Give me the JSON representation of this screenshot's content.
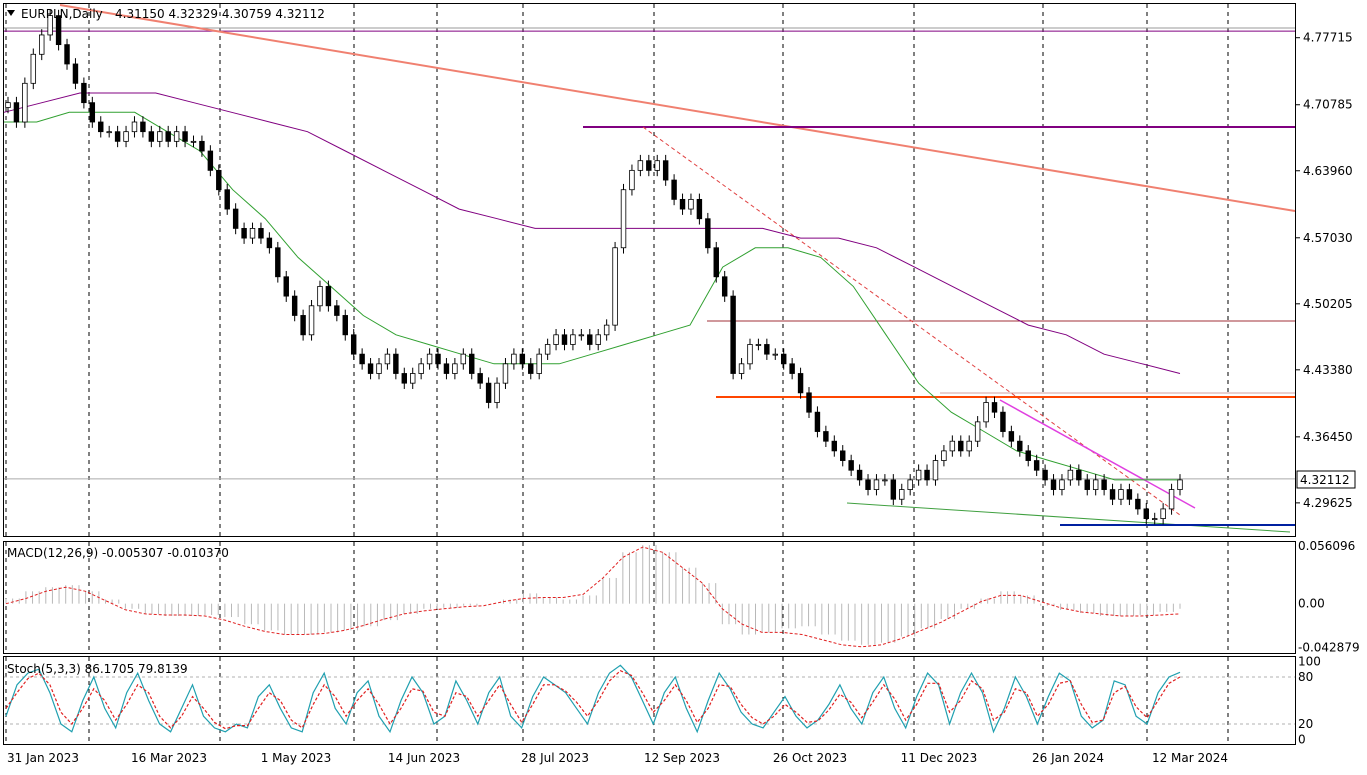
{
  "chart_data": {
    "type": "candlestick",
    "symbol_header": "EURPLN,Daily",
    "ohlc_header": "4.31150 4.32329 4.30759 4.32112",
    "current_price": "4.32112",
    "price_ticks": [
      "4.77715",
      "4.70785",
      "4.63960",
      "4.57030",
      "4.50205",
      "4.43380",
      "4.36450",
      "4.29625"
    ],
    "date_ticks": [
      "31 Jan 2023",
      "16 Mar 2023",
      "1 May 2023",
      "14 Jun 2023",
      "28 Jul 2023",
      "12 Sep 2023",
      "26 Oct 2023",
      "11 Dec 2023",
      "26 Jan 2024",
      "12 Mar 2024"
    ],
    "price_range": [
      4.262,
      4.812
    ],
    "grid": true,
    "closes": [
      4.71,
      4.69,
      4.73,
      4.76,
      4.78,
      4.8,
      4.77,
      4.75,
      4.73,
      4.71,
      4.69,
      4.68,
      4.68,
      4.67,
      4.68,
      4.69,
      4.68,
      4.67,
      4.68,
      4.67,
      4.68,
      4.67,
      4.67,
      4.66,
      4.64,
      4.62,
      4.6,
      4.58,
      4.57,
      4.58,
      4.57,
      4.56,
      4.53,
      4.51,
      4.49,
      4.47,
      4.5,
      4.52,
      4.5,
      4.49,
      4.47,
      4.45,
      4.44,
      4.43,
      4.44,
      4.45,
      4.43,
      4.42,
      4.43,
      4.44,
      4.45,
      4.44,
      4.43,
      4.44,
      4.45,
      4.43,
      4.42,
      4.4,
      4.42,
      4.44,
      4.45,
      4.44,
      4.43,
      4.45,
      4.46,
      4.47,
      4.46,
      4.47,
      4.47,
      4.46,
      4.47,
      4.48,
      4.56,
      4.62,
      4.64,
      4.65,
      4.64,
      4.65,
      4.63,
      4.61,
      4.6,
      4.61,
      4.59,
      4.56,
      4.53,
      4.51,
      4.43,
      4.44,
      4.46,
      4.46,
      4.45,
      4.45,
      4.44,
      4.43,
      4.41,
      4.39,
      4.37,
      4.36,
      4.35,
      4.34,
      4.33,
      4.32,
      4.31,
      4.32,
      4.32,
      4.3,
      4.31,
      4.32,
      4.33,
      4.32,
      4.34,
      4.35,
      4.36,
      4.35,
      4.36,
      4.38,
      4.4,
      4.39,
      4.37,
      4.36,
      4.35,
      4.34,
      4.33,
      4.32,
      4.31,
      4.32,
      4.33,
      4.32,
      4.31,
      4.32,
      4.31,
      4.3,
      4.31,
      4.3,
      4.29,
      4.28,
      4.28,
      4.29,
      4.31,
      4.32
    ],
    "ma_green": [
      4.69,
      4.69,
      4.7,
      4.7,
      4.7,
      4.68,
      4.66,
      4.62,
      4.59,
      4.55,
      4.52,
      4.49,
      4.47,
      4.46,
      4.45,
      4.44,
      4.44,
      4.44,
      4.45,
      4.46,
      4.47,
      4.48,
      4.54,
      4.56,
      4.56,
      4.55,
      4.52,
      4.47,
      4.42,
      4.39,
      4.37,
      4.35,
      4.34,
      4.33,
      4.32,
      4.32,
      4.32
    ],
    "ma_purple": [
      4.7,
      4.71,
      4.72,
      4.72,
      4.72,
      4.71,
      4.7,
      4.69,
      4.68,
      4.66,
      4.64,
      4.62,
      4.6,
      4.59,
      4.58,
      4.58,
      4.58,
      4.58,
      4.58,
      4.58,
      4.58,
      4.57,
      4.57,
      4.56,
      4.54,
      4.52,
      4.5,
      4.48,
      4.47,
      4.45,
      4.44,
      4.43
    ],
    "macd_panel": {
      "header": "MACD(12,26,9) -0.005307 -0.010370",
      "ticks": [
        "0.056096",
        "0.00",
        "-0.042879"
      ],
      "range": [
        -0.048,
        0.06
      ],
      "histogram": [
        0.005,
        0.012,
        0.016,
        0.018,
        0.012,
        0.004,
        -0.005,
        -0.01,
        -0.012,
        -0.012,
        -0.011,
        -0.013,
        -0.02,
        -0.026,
        -0.03,
        -0.03,
        -0.028,
        -0.026,
        -0.022,
        -0.016,
        -0.01,
        -0.005,
        -0.004,
        -0.002,
        0.0,
        0.004,
        0.01,
        0.006,
        0.004,
        0.008,
        0.025,
        0.05,
        0.057,
        0.05,
        0.035,
        0.02,
        -0.02,
        -0.03,
        -0.028,
        -0.024,
        -0.022,
        -0.03,
        -0.036,
        -0.04,
        -0.038,
        -0.032,
        -0.024,
        -0.015,
        -0.005,
        0.005,
        0.012,
        0.008,
        -0.002,
        -0.006,
        -0.009,
        -0.012,
        -0.012,
        -0.011,
        -0.008,
        -0.005
      ],
      "signal": [
        0.0,
        0.005,
        0.012,
        0.016,
        0.012,
        0.003,
        -0.006,
        -0.01,
        -0.011,
        -0.011,
        -0.012,
        -0.016,
        -0.022,
        -0.027,
        -0.03,
        -0.03,
        -0.029,
        -0.026,
        -0.021,
        -0.015,
        -0.01,
        -0.007,
        -0.005,
        -0.003,
        -0.002,
        0.002,
        0.005,
        0.006,
        0.006,
        0.009,
        0.025,
        0.045,
        0.055,
        0.05,
        0.035,
        0.02,
        -0.005,
        -0.02,
        -0.028,
        -0.028,
        -0.03,
        -0.035,
        -0.04,
        -0.042,
        -0.04,
        -0.034,
        -0.026,
        -0.018,
        -0.008,
        0.002,
        0.008,
        0.008,
        0.002,
        -0.004,
        -0.008,
        -0.01,
        -0.012,
        -0.012,
        -0.011,
        -0.01
      ]
    },
    "stoch_panel": {
      "header": "Stoch(5,3,3) 86.1705 79.8139",
      "ticks": [
        "100",
        "80",
        "20",
        "0"
      ],
      "range": [
        0,
        100
      ],
      "main": [
        30,
        70,
        85,
        90,
        60,
        20,
        10,
        50,
        80,
        40,
        15,
        60,
        85,
        50,
        20,
        10,
        40,
        70,
        30,
        15,
        10,
        20,
        15,
        55,
        70,
        40,
        15,
        10,
        60,
        85,
        40,
        20,
        60,
        75,
        30,
        10,
        50,
        80,
        60,
        20,
        30,
        75,
        50,
        20,
        60,
        80,
        30,
        15,
        55,
        80,
        70,
        60,
        40,
        20,
        60,
        85,
        95,
        80,
        50,
        20,
        60,
        80,
        40,
        10,
        50,
        85,
        65,
        35,
        20,
        15,
        35,
        55,
        30,
        15,
        25,
        45,
        70,
        40,
        20,
        60,
        80,
        40,
        15,
        55,
        85,
        70,
        20,
        60,
        85,
        60,
        10,
        40,
        80,
        55,
        20,
        55,
        85,
        75,
        30,
        15,
        25,
        75,
        70,
        30,
        20,
        60,
        80,
        86
      ],
      "signal": [
        40,
        60,
        78,
        85,
        70,
        35,
        20,
        40,
        65,
        50,
        25,
        45,
        70,
        60,
        30,
        15,
        30,
        55,
        40,
        22,
        14,
        18,
        18,
        40,
        60,
        50,
        25,
        15,
        45,
        70,
        55,
        30,
        50,
        65,
        45,
        20,
        40,
        65,
        62,
        35,
        30,
        60,
        55,
        30,
        50,
        70,
        45,
        22,
        45,
        70,
        70,
        62,
        48,
        30,
        50,
        75,
        88,
        82,
        60,
        35,
        50,
        70,
        50,
        22,
        40,
        70,
        68,
        45,
        28,
        20,
        30,
        45,
        35,
        22,
        24,
        38,
        58,
        48,
        28,
        48,
        70,
        52,
        25,
        45,
        72,
        72,
        35,
        50,
        75,
        65,
        25,
        35,
        65,
        60,
        30,
        45,
        72,
        75,
        45,
        22,
        25,
        60,
        68,
        42,
        28,
        50,
        72,
        80
      ]
    }
  }
}
